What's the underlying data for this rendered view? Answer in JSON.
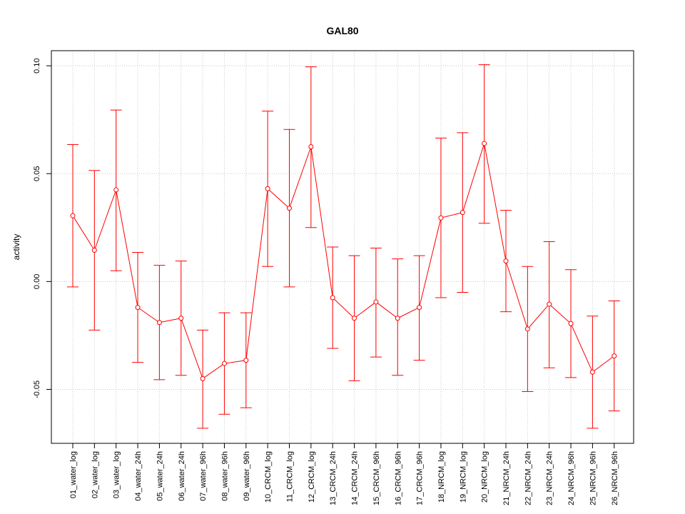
{
  "chart_data": {
    "type": "line",
    "title": "GAL80",
    "xlabel": "",
    "ylabel": "activity",
    "ylim": [
      -0.075,
      0.107
    ],
    "yticks": [
      -0.05,
      0.0,
      0.05,
      0.1
    ],
    "ytick_labels": [
      "-0.05",
      "0.00",
      "0.05",
      "0.10"
    ],
    "grid": true,
    "color": "#ff0000",
    "categories": [
      "01_water_log",
      "02_water_log",
      "03_water_log",
      "04_water_24h",
      "05_water_24h",
      "06_water_24h",
      "07_water_96h",
      "08_water_96h",
      "09_water_96h",
      "10_CRCM_log",
      "11_CRCM_log",
      "12_CRCM_log",
      "13_CRCM_24h",
      "14_CRCM_24h",
      "15_CRCM_96h",
      "16_CRCM_96h",
      "17_CRCM_96h",
      "18_NRCM_log",
      "19_NRCM_log",
      "20_NRCM_log",
      "21_NRCM_24h",
      "22_NRCM_24h",
      "23_NRCM_24h",
      "24_NRCM_96h",
      "25_NRCM_96h",
      "26_NRCM_96h"
    ],
    "values": [
      0.0305,
      0.0145,
      0.0425,
      -0.012,
      -0.019,
      -0.017,
      -0.045,
      -0.038,
      -0.0365,
      0.043,
      0.034,
      0.0625,
      -0.0075,
      -0.017,
      -0.0095,
      -0.017,
      -0.012,
      0.0295,
      0.032,
      0.064,
      0.0095,
      -0.022,
      -0.0105,
      -0.0195,
      -0.042,
      -0.0345
    ],
    "upper": [
      0.0635,
      0.0515,
      0.0795,
      0.0135,
      0.0075,
      0.0095,
      -0.0225,
      -0.0145,
      -0.0145,
      0.079,
      0.0705,
      0.0995,
      0.016,
      0.012,
      0.0155,
      0.0105,
      0.012,
      0.0665,
      0.069,
      0.1005,
      0.033,
      0.007,
      0.0185,
      0.0055,
      -0.016,
      -0.009
    ],
    "lower": [
      -0.0025,
      -0.0225,
      0.005,
      -0.0375,
      -0.0455,
      -0.0435,
      -0.068,
      -0.0615,
      -0.0585,
      0.007,
      -0.0025,
      0.025,
      -0.031,
      -0.046,
      -0.035,
      -0.0435,
      -0.0365,
      -0.0075,
      -0.005,
      0.027,
      -0.014,
      -0.051,
      -0.04,
      -0.0445,
      -0.068,
      -0.06
    ]
  }
}
